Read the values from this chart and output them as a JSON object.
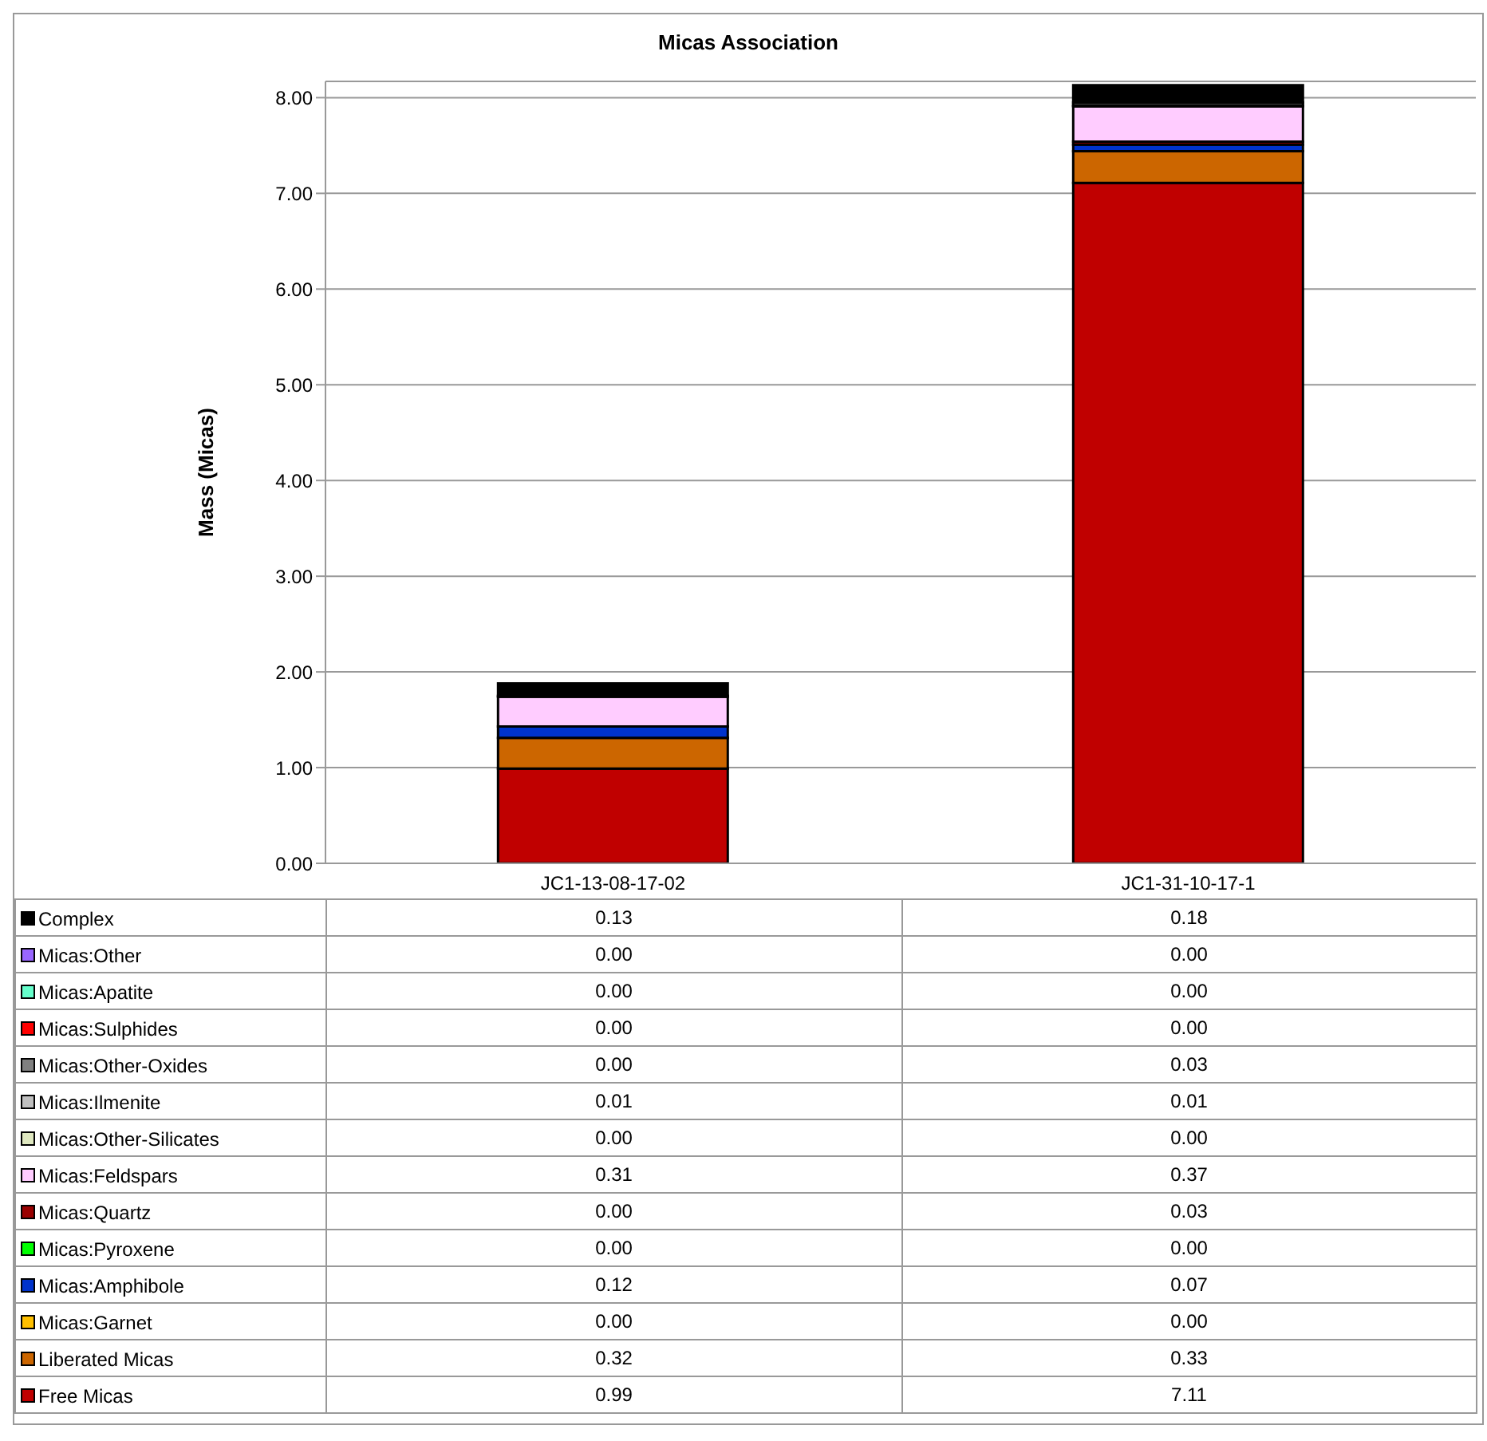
{
  "chart_data": {
    "type": "bar",
    "title": "Micas Association",
    "ylabel": "Mass (Micas)",
    "stacked": true,
    "categories": [
      "JC1-13-08-17-02",
      "JC1-31-10-17-1"
    ],
    "series": [
      {
        "name": "Free Micas",
        "color": "#c00000",
        "values": [
          0.99,
          7.11
        ],
        "value_labels": [
          "0.99",
          "7.11"
        ]
      },
      {
        "name": "Liberated Micas",
        "color": "#cc6600",
        "values": [
          0.32,
          0.33
        ],
        "value_labels": [
          "0.32",
          "0.33"
        ]
      },
      {
        "name": "Micas:Garnet",
        "color": "#ffc000",
        "values": [
          0,
          0
        ],
        "value_labels": [
          "0.00",
          "0.00"
        ]
      },
      {
        "name": "Micas:Amphibole",
        "color": "#0033cc",
        "values": [
          0.12,
          0.07
        ],
        "value_labels": [
          "0.12",
          "0.07"
        ]
      },
      {
        "name": "Micas:Pyroxene",
        "color": "#00ff00",
        "values": [
          0,
          0
        ],
        "value_labels": [
          "0.00",
          "0.00"
        ]
      },
      {
        "name": "Micas:Quartz",
        "color": "#990000",
        "values": [
          0,
          0.03
        ],
        "value_labels": [
          "0.00",
          "0.03"
        ]
      },
      {
        "name": "Micas:Feldspars",
        "color": "#ffccff",
        "values": [
          0.31,
          0.37
        ],
        "value_labels": [
          "0.31",
          "0.37"
        ]
      },
      {
        "name": "Micas:Other-Silicates",
        "color": "#dfe8c0",
        "values": [
          0,
          0
        ],
        "value_labels": [
          "0.00",
          "0.00"
        ]
      },
      {
        "name": "Micas:Ilmenite",
        "color": "#c0c0c0",
        "values": [
          0.01,
          0.01
        ],
        "value_labels": [
          "0.01",
          "0.01"
        ]
      },
      {
        "name": "Micas:Other-Oxides",
        "color": "#808080",
        "values": [
          0,
          0.03
        ],
        "value_labels": [
          "0.00",
          "0.03"
        ]
      },
      {
        "name": "Micas:Sulphides",
        "color": "#ff0000",
        "values": [
          0,
          0
        ],
        "value_labels": [
          "0.00",
          "0.00"
        ]
      },
      {
        "name": "Micas:Apatite",
        "color": "#66ffcc",
        "values": [
          0,
          0
        ],
        "value_labels": [
          "0.00",
          "0.00"
        ]
      },
      {
        "name": "Micas:Other",
        "color": "#9966ff",
        "values": [
          0,
          0
        ],
        "value_labels": [
          "0.00",
          "0.00"
        ]
      },
      {
        "name": "Complex",
        "color": "#000000",
        "values": [
          0.13,
          0.18
        ],
        "value_labels": [
          "0.13",
          "0.18"
        ]
      }
    ],
    "ylim": [
      0,
      8.17
    ],
    "yticks": [
      {
        "value": 0,
        "label": "0.00"
      },
      {
        "value": 1,
        "label": "1.00"
      },
      {
        "value": 2,
        "label": "2.00"
      },
      {
        "value": 3,
        "label": "3.00"
      },
      {
        "value": 4,
        "label": "4.00"
      },
      {
        "value": 5,
        "label": "5.00"
      },
      {
        "value": 6,
        "label": "6.00"
      },
      {
        "value": 7,
        "label": "7.00"
      },
      {
        "value": 8,
        "label": "8.00"
      }
    ],
    "grid": "y",
    "legend": "bottom"
  }
}
